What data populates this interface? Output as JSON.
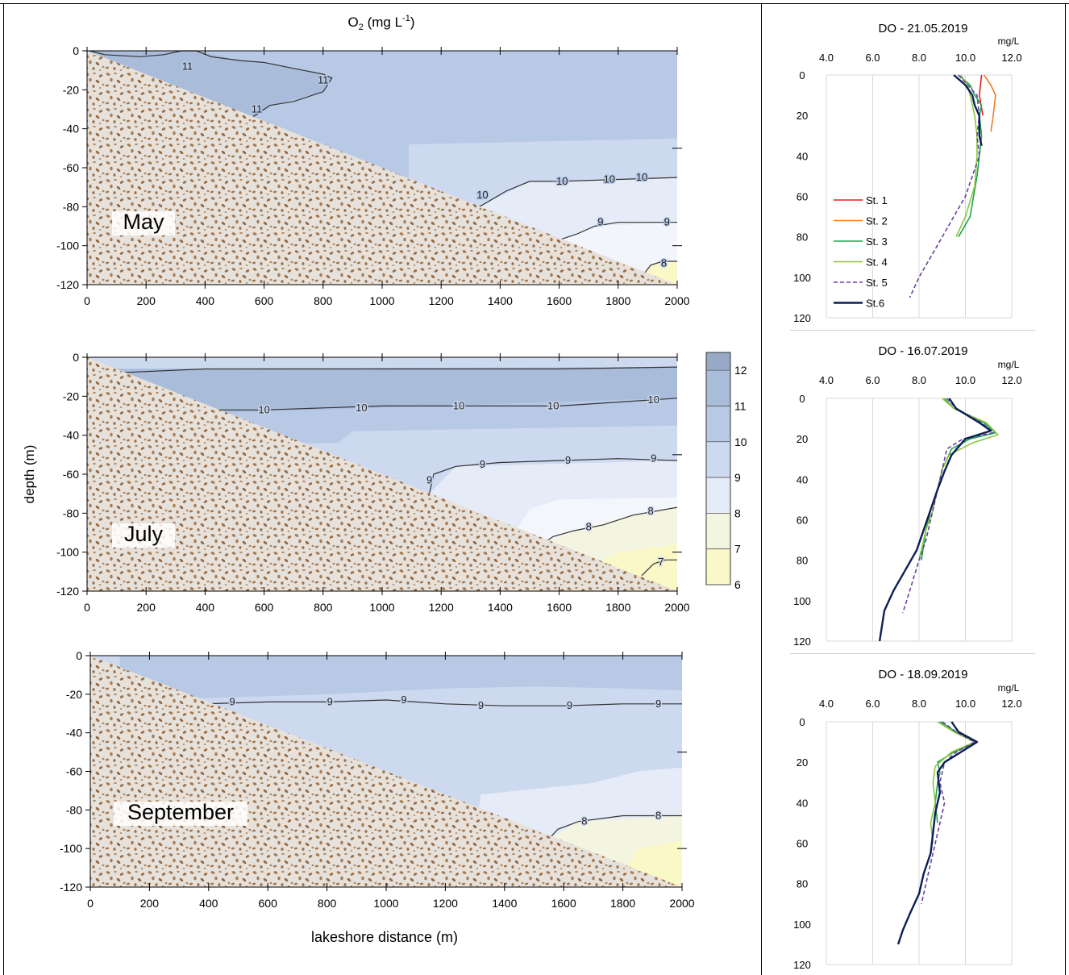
{
  "left_figure": {
    "title": "O",
    "title_sub": "2",
    "title_unit": " (mg L",
    "title_sup": "-1",
    "title_end": ")",
    "ylabel": "depth (m)",
    "xlabel": "lakeshore distance (m)"
  },
  "colors": {
    "o2_12": "#9dafca",
    "o2_11": "#a9bcda",
    "o2_10": "#b8c9e6",
    "o2_9": "#ccd9ef",
    "o2_8": "#e6ecf7",
    "o2_7": "#f3f5e1",
    "o2_6": "#fbf8c8",
    "sediment_bg": "#e4dfd8",
    "sediment_grain": "#a37752",
    "st1": "#e31a1c",
    "st2": "#f07d2d",
    "st3": "#1aa64a",
    "st4": "#8cc63f",
    "st5": "#6b3fa0",
    "st6": "#0b1f55"
  },
  "chart_data": [
    {
      "type": "heatmap",
      "panel_label": "May",
      "xticks": [
        "0",
        "200",
        "400",
        "600",
        "800",
        "1000",
        "1200",
        "1400",
        "1600",
        "1800",
        "2000"
      ],
      "yticks": [
        "0",
        "-20",
        "-40",
        "-60",
        "-80",
        "-100",
        "-120"
      ],
      "xlim": [
        0,
        2000
      ],
      "ylim": [
        -120,
        0
      ],
      "contour_labels": [
        "11",
        "11",
        "11",
        "10",
        "10",
        "10",
        "10",
        "9",
        "9",
        "8"
      ],
      "contours": [
        {
          "level": 11,
          "points": [
            [
              8,
              0
            ],
            [
              60,
              -2
            ],
            [
              180,
              -3
            ],
            [
              260,
              -2
            ],
            [
              320,
              0
            ],
            [
              370,
              0
            ],
            [
              420,
              -3
            ],
            [
              520,
              -5
            ],
            [
              600,
              -6
            ],
            [
              700,
              -9
            ],
            [
              800,
              -12
            ],
            [
              830,
              -14
            ],
            [
              800,
              -21
            ],
            [
              700,
              -26
            ],
            [
              620,
              -28
            ],
            [
              560,
              -34
            ],
            [
              540,
              -38
            ]
          ]
        },
        {
          "level": 10,
          "points": [
            [
              1330,
              -80
            ],
            [
              1420,
              -72
            ],
            [
              1500,
              -67
            ],
            [
              1600,
              -67
            ],
            [
              1800,
              -66
            ],
            [
              2000,
              -65
            ]
          ]
        },
        {
          "level": 9,
          "points": [
            [
              1600,
              -97
            ],
            [
              1660,
              -94
            ],
            [
              1720,
              -90
            ],
            [
              1800,
              -88
            ],
            [
              2000,
              -88
            ]
          ]
        },
        {
          "level": 8,
          "points": [
            [
              1880,
              -116
            ],
            [
              1910,
              -110
            ],
            [
              1950,
              -108
            ],
            [
              2000,
              -108
            ]
          ]
        }
      ]
    },
    {
      "type": "heatmap",
      "panel_label": "July",
      "xticks": [
        "0",
        "200",
        "400",
        "600",
        "800",
        "1000",
        "1200",
        "1400",
        "1600",
        "1800",
        "2000"
      ],
      "yticks": [
        "0",
        "-20",
        "-40",
        "-60",
        "-80",
        "-100",
        "-120"
      ],
      "xlim": [
        0,
        2000
      ],
      "ylim": [
        -120,
        0
      ],
      "contour_labels": [
        "10",
        "10",
        "10",
        "10",
        "10",
        "9",
        "9",
        "9",
        "9",
        "8",
        "8",
        "7"
      ],
      "contours": [
        {
          "level": 11,
          "points": [
            [
              100,
              -8
            ],
            [
              400,
              -6
            ],
            [
              800,
              -6
            ],
            [
              1200,
              -6
            ],
            [
              1600,
              -6
            ],
            [
              2000,
              -5
            ]
          ]
        },
        {
          "level": 10,
          "points": [
            [
              370,
              -29
            ],
            [
              400,
              -27
            ],
            [
              600,
              -27
            ],
            [
              800,
              -26
            ],
            [
              1000,
              -25
            ],
            [
              1200,
              -25
            ],
            [
              1400,
              -25
            ],
            [
              1600,
              -25
            ],
            [
              1800,
              -23
            ],
            [
              2000,
              -21
            ]
          ]
        },
        {
          "level": 9,
          "points": [
            [
              1160,
              -70
            ],
            [
              1175,
              -60
            ],
            [
              1250,
              -56
            ],
            [
              1400,
              -54
            ],
            [
              1600,
              -53
            ],
            [
              1800,
              -52
            ],
            [
              2000,
              -53
            ]
          ]
        },
        {
          "level": 8,
          "points": [
            [
              1540,
              -96
            ],
            [
              1580,
              -92
            ],
            [
              1650,
              -89
            ],
            [
              1750,
              -86
            ],
            [
              1850,
              -81
            ],
            [
              2000,
              -77
            ]
          ]
        },
        {
          "level": 7,
          "points": [
            [
              1880,
              -112
            ],
            [
              1920,
              -106
            ],
            [
              1960,
              -104
            ],
            [
              2000,
              -104
            ]
          ]
        }
      ]
    },
    {
      "type": "heatmap",
      "panel_label": "September",
      "xticks": [
        "0",
        "200",
        "400",
        "600",
        "800",
        "1000",
        "1200",
        "1400",
        "1600",
        "1800",
        "2000"
      ],
      "yticks": [
        "0",
        "-20",
        "-40",
        "-60",
        "-80",
        "-100",
        "-120"
      ],
      "xlim": [
        0,
        2000
      ],
      "ylim": [
        -120,
        0
      ],
      "contour_labels": [
        "9",
        "9",
        "9",
        "9",
        "9",
        "9",
        "8",
        "8"
      ],
      "contours": [
        {
          "level": 9,
          "points": [
            [
              360,
              -27
            ],
            [
              380,
              -25
            ],
            [
              600,
              -24
            ],
            [
              800,
              -24
            ],
            [
              1000,
              -23
            ],
            [
              1200,
              -25
            ],
            [
              1400,
              -26
            ],
            [
              1600,
              -26
            ],
            [
              1800,
              -25
            ],
            [
              2000,
              -25
            ]
          ]
        },
        {
          "level": 8,
          "points": [
            [
              1550,
              -95
            ],
            [
              1580,
              -90
            ],
            [
              1650,
              -86
            ],
            [
              1800,
              -83
            ],
            [
              2000,
              -83
            ]
          ]
        }
      ]
    },
    {
      "type": "line",
      "title": "DO - 21.05.2019",
      "unit": "mg/L",
      "xticks": [
        "4.0",
        "6.0",
        "8.0",
        "10.0",
        "12.0"
      ],
      "yticks": [
        "0",
        "20",
        "40",
        "60",
        "80",
        "100",
        "120"
      ],
      "xlim": [
        4,
        12
      ],
      "ylim": [
        0,
        120
      ],
      "legend": [
        "St. 1",
        "St. 2",
        "St. 3",
        "St. 4",
        "St. 5",
        "St.6"
      ],
      "series": [
        {
          "name": "St. 1",
          "x": [
            10.7,
            10.6,
            10.75
          ],
          "y": [
            0,
            10,
            20
          ]
        },
        {
          "name": "St. 2",
          "x": [
            10.8,
            11.1,
            11.3,
            11.2,
            11.1
          ],
          "y": [
            0,
            5,
            10,
            20,
            28
          ]
        },
        {
          "name": "St. 3",
          "x": [
            9.7,
            10.2,
            10.4,
            10.7,
            10.6,
            10.7,
            10.6,
            10.5,
            10.2,
            9.7
          ],
          "y": [
            0,
            5,
            10,
            15,
            20,
            30,
            40,
            50,
            70,
            80
          ]
        },
        {
          "name": "St. 4",
          "x": [
            9.8,
            10.1,
            10.2,
            10.3,
            10.4,
            10.5,
            10.5,
            10.4,
            10.0,
            9.6
          ],
          "y": [
            0,
            5,
            10,
            15,
            20,
            30,
            40,
            55,
            70,
            80
          ]
        },
        {
          "name": "St. 5",
          "x": [
            9.7,
            10.1,
            10.5,
            10.6,
            10.5,
            10.6,
            10.3,
            10.0,
            9.5,
            9.0,
            8.5,
            8.0,
            7.6
          ],
          "y": [
            0,
            5,
            10,
            20,
            30,
            40,
            50,
            60,
            70,
            80,
            90,
            100,
            110
          ]
        },
        {
          "name": "St.6",
          "x": [
            9.5,
            10.0,
            10.3,
            10.4,
            10.6,
            10.6,
            10.7
          ],
          "y": [
            0,
            5,
            10,
            15,
            20,
            30,
            35
          ]
        }
      ]
    },
    {
      "type": "line",
      "title": "DO - 16.07.2019",
      "unit": "mg/L",
      "xticks": [
        "4.0",
        "6.0",
        "8.0",
        "10.0",
        "12.0"
      ],
      "yticks": [
        "0",
        "20",
        "40",
        "60",
        "80",
        "100",
        "120"
      ],
      "xlim": [
        4,
        12
      ],
      "ylim": [
        0,
        120
      ],
      "series": [
        {
          "name": "St. 3",
          "x": [
            9.1,
            9.5,
            10.8,
            11.3,
            10.2,
            9.4,
            9.0,
            8.8,
            8.5,
            8.3,
            8.1
          ],
          "y": [
            0,
            5,
            12,
            17,
            20,
            25,
            35,
            45,
            55,
            65,
            80
          ]
        },
        {
          "name": "St. 4",
          "x": [
            9.0,
            9.5,
            10.9,
            11.4,
            10.3,
            9.3,
            9.0,
            8.8,
            8.6,
            8.3,
            8.0
          ],
          "y": [
            0,
            5,
            12,
            18,
            22,
            28,
            35,
            45,
            55,
            65,
            80
          ]
        },
        {
          "name": "St. 5",
          "x": [
            9.2,
            9.6,
            10.7,
            11.2,
            9.9,
            9.2,
            9.0,
            8.8,
            8.6,
            8.3,
            8.0,
            7.6,
            7.3
          ],
          "y": [
            0,
            5,
            12,
            17,
            20,
            25,
            35,
            45,
            55,
            70,
            80,
            95,
            106
          ]
        },
        {
          "name": "St.6",
          "x": [
            9.3,
            9.6,
            10.6,
            11.1,
            10.0,
            9.4,
            9.1,
            8.8,
            8.5,
            8.2,
            7.9,
            7.4,
            6.9,
            6.5,
            6.3
          ],
          "y": [
            0,
            5,
            12,
            16,
            20,
            28,
            36,
            45,
            55,
            65,
            75,
            85,
            95,
            105,
            120
          ]
        }
      ]
    },
    {
      "type": "line",
      "title": "DO - 18.09.2019",
      "unit": "mg/L",
      "xticks": [
        "4.0",
        "6.0",
        "8.0",
        "10.0",
        "12.0"
      ],
      "yticks": [
        "0",
        "20",
        "40",
        "60",
        "80",
        "100",
        "120"
      ],
      "xlim": [
        4,
        12
      ],
      "ylim": [
        0,
        120
      ],
      "series": [
        {
          "name": "St. 3",
          "x": [
            8.9,
            9.6,
            10.5,
            9.5,
            8.8,
            8.9,
            8.8,
            8.7,
            8.8
          ],
          "y": [
            0,
            5,
            10,
            15,
            20,
            25,
            30,
            40,
            50
          ]
        },
        {
          "name": "St. 4",
          "x": [
            8.8,
            9.5,
            10.4,
            9.4,
            8.7,
            8.6,
            8.7,
            8.5,
            8.6
          ],
          "y": [
            0,
            5,
            10,
            15,
            22,
            30,
            40,
            50,
            60
          ]
        },
        {
          "name": "St. 5",
          "x": [
            9.0,
            9.6,
            10.4,
            9.6,
            9.1,
            8.9,
            9.1,
            9.0,
            8.8,
            8.6,
            8.4,
            8.2,
            8.1
          ],
          "y": [
            0,
            5,
            10,
            15,
            20,
            30,
            40,
            45,
            55,
            65,
            75,
            85,
            90
          ]
        },
        {
          "name": "St.6",
          "x": [
            9.4,
            9.7,
            10.5,
            9.8,
            9.1,
            8.8,
            8.9,
            8.7,
            8.6,
            8.5,
            8.2,
            8.0,
            7.6,
            7.3,
            7.1
          ],
          "y": [
            0,
            5,
            10,
            15,
            20,
            25,
            35,
            45,
            55,
            65,
            75,
            85,
            95,
            103,
            110
          ]
        }
      ]
    }
  ]
}
